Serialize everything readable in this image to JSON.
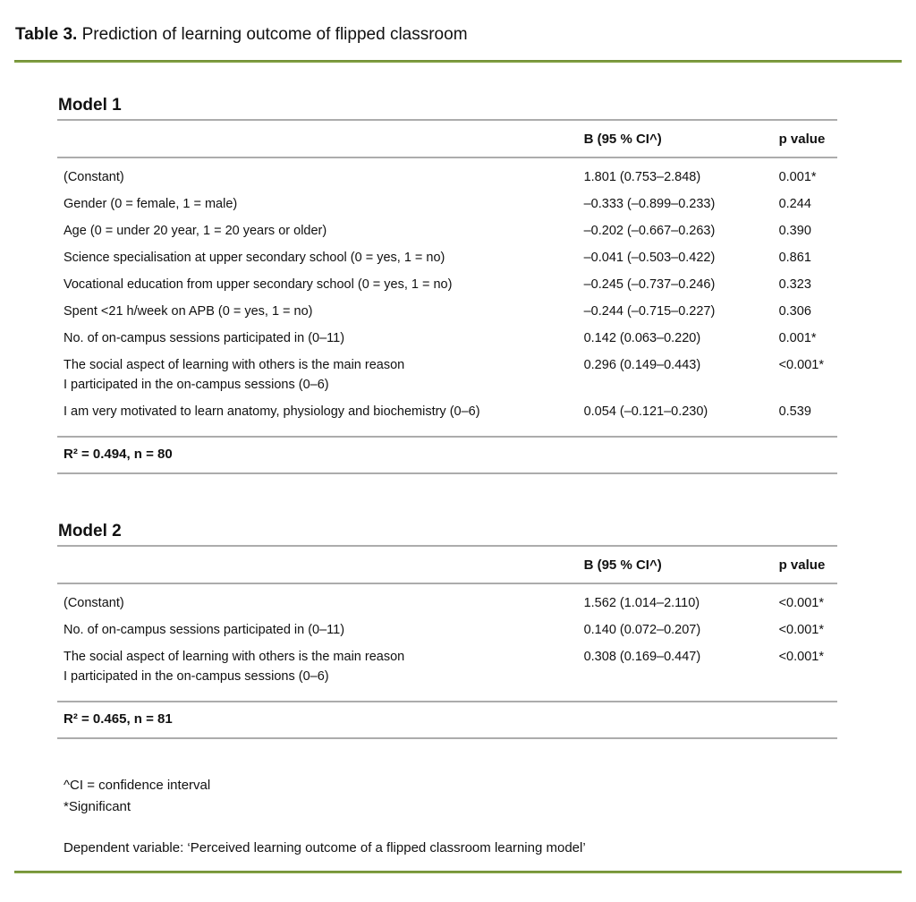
{
  "caption": {
    "label": "Table 3.",
    "text": " Prediction of learning outcome of flipped classroom"
  },
  "models": [
    {
      "name": "Model 1",
      "columns": [
        "",
        "B (95 % CI^)",
        "p value"
      ],
      "rows": [
        {
          "label": "(Constant)",
          "label2": "",
          "b": "1.801 (0.753–2.848)",
          "p": "0.001*"
        },
        {
          "label": "Gender (0 = female, 1 = male)",
          "label2": "",
          "b": "–0.333 (–0.899–0.233)",
          "p": "0.244"
        },
        {
          "label": "Age (0 = under 20 year, 1 = 20 years or older)",
          "label2": "",
          "b": "–0.202 (–0.667–0.263)",
          "p": "0.390"
        },
        {
          "label": "Science specialisation at upper secondary school (0 = yes, 1 = no)",
          "label2": "",
          "b": "–0.041 (–0.503–0.422)",
          "p": "0.861"
        },
        {
          "label": "Vocational education from upper secondary school (0 = yes, 1 = no)",
          "label2": "",
          "b": "–0.245 (–0.737–0.246)",
          "p": "0.323"
        },
        {
          "label": "Spent <21 h/week on APB (0 = yes, 1 = no)",
          "label2": "",
          "b": "–0.244 (–0.715–0.227)",
          "p": "0.306"
        },
        {
          "label": "No. of on-campus sessions participated in (0–11)",
          "label2": "",
          "b": "0.142 (0.063–0.220)",
          "p": "0.001*"
        },
        {
          "label": "The social aspect of learning with others is the main reason",
          "label2": "I participated in the on-campus sessions (0–6)",
          "b": "0.296 (0.149–0.443)",
          "p": "<0.001*"
        },
        {
          "label": "I am very motivated to learn anatomy, physiology and biochemistry (0–6)",
          "label2": "",
          "b": "0.054 (–0.121–0.230)",
          "p": "0.539"
        }
      ],
      "footer": "R² = 0.494, n = 80"
    },
    {
      "name": "Model 2",
      "columns": [
        "",
        "B (95 % CI^)",
        "p value"
      ],
      "rows": [
        {
          "label": "(Constant)",
          "label2": "",
          "b": "1.562 (1.014–2.110)",
          "p": "<0.001*"
        },
        {
          "label": "No. of on-campus sessions participated in (0–11)",
          "label2": "",
          "b": "0.140 (0.072–0.207)",
          "p": "<0.001*"
        },
        {
          "label": "The social aspect of learning with others is the main reason",
          "label2": "I participated in the on-campus sessions (0–6)",
          "b": "0.308 (0.169–0.447)",
          "p": "<0.001*"
        }
      ],
      "footer": "R² = 0.465, n = 81"
    }
  ],
  "notes": [
    "^CI = confidence interval",
    "*Significant"
  ],
  "dependent_note": "Dependent variable: ‘Perceived learning outcome of a flipped classroom learning model’",
  "colors": {
    "accent_line": "#77933C",
    "rule": "#ACACAC"
  }
}
